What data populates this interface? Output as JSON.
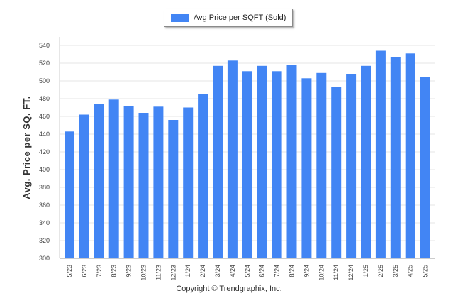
{
  "chart_data": {
    "type": "bar",
    "title": "",
    "xlabel": "",
    "ylabel": "Avg. Price per SQ. FT.",
    "ylim": [
      300,
      550
    ],
    "yticks": [
      300,
      320,
      340,
      360,
      380,
      400,
      420,
      440,
      460,
      480,
      500,
      520,
      540
    ],
    "grid": true,
    "legend_position": "top-center",
    "categories": [
      "5/23",
      "6/23",
      "7/23",
      "8/23",
      "9/23",
      "10/23",
      "11/23",
      "12/23",
      "1/24",
      "2/24",
      "3/24",
      "4/24",
      "5/24",
      "6/24",
      "7/24",
      "8/24",
      "9/24",
      "10/24",
      "11/24",
      "12/24",
      "1/25",
      "2/25",
      "3/25",
      "4/25",
      "5/25"
    ],
    "series": [
      {
        "name": "Avg Price per SQFT (Sold)",
        "color": "#4285f4",
        "values": [
          443,
          462,
          474,
          479,
          472,
          464,
          471,
          456,
          470,
          485,
          517,
          523,
          511,
          517,
          511,
          518,
          503,
          509,
          493,
          508,
          517,
          534,
          527,
          531,
          504
        ]
      }
    ]
  },
  "footer": {
    "copyright": "Copyright © Trendgraphix, Inc."
  }
}
